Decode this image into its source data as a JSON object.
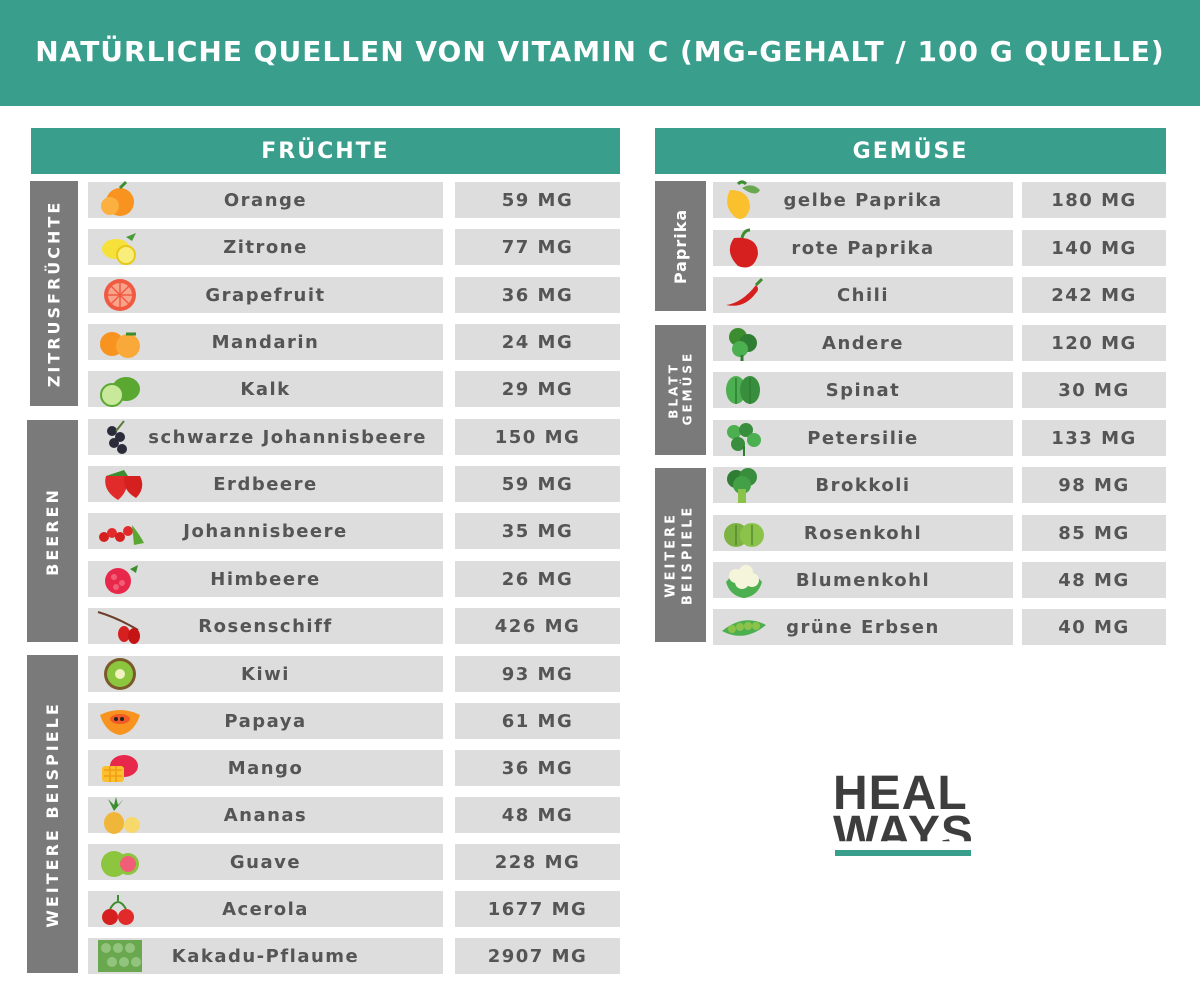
{
  "title": "NATÜRLICHE QUELLEN VON VITAMIN C (MG-GEHALT / 100 G QUELLE)",
  "colors": {
    "accent": "#3a9e8c",
    "group": "#7a7a7a",
    "cell": "#dddddd"
  },
  "fruits": {
    "header": "FRÜCHTE",
    "groups": [
      "ZITRUSFRÜCHTE",
      "BEEREN",
      "WEITERE BEISPIELE"
    ],
    "rows": [
      {
        "name": "Orange",
        "value": "59 MG",
        "icon": "orange-icon"
      },
      {
        "name": "Zitrone",
        "value": "77 MG",
        "icon": "lemon-icon"
      },
      {
        "name": "Grapefruit",
        "value": "36 MG",
        "icon": "grapefruit-icon"
      },
      {
        "name": "Mandarin",
        "value": "24 MG",
        "icon": "mandarin-icon"
      },
      {
        "name": "Kalk",
        "value": "29 MG",
        "icon": "lime-icon"
      },
      {
        "name": "schwarze Johannisbeere",
        "value": "150 MG",
        "icon": "blackcurrant-icon"
      },
      {
        "name": "Erdbeere",
        "value": "59 MG",
        "icon": "strawberry-icon"
      },
      {
        "name": "Johannisbeere",
        "value": "35 MG",
        "icon": "redcurrant-icon"
      },
      {
        "name": "Himbeere",
        "value": "26 MG",
        "icon": "raspberry-icon"
      },
      {
        "name": "Rosenschiff",
        "value": "426 MG",
        "icon": "rosehip-icon"
      },
      {
        "name": "Kiwi",
        "value": "93 MG",
        "icon": "kiwi-icon"
      },
      {
        "name": "Papaya",
        "value": "61 MG",
        "icon": "papaya-icon"
      },
      {
        "name": "Mango",
        "value": "36 MG",
        "icon": "mango-icon"
      },
      {
        "name": "Ananas",
        "value": "48 MG",
        "icon": "pineapple-icon"
      },
      {
        "name": "Guave",
        "value": "228 MG",
        "icon": "guava-icon"
      },
      {
        "name": "Acerola",
        "value": "1677 MG",
        "icon": "acerola-icon"
      },
      {
        "name": "Kakadu-Pflaume",
        "value": "2907 MG",
        "icon": "kakadu-plum-icon"
      }
    ]
  },
  "vegetables": {
    "header": "GEMÜSE",
    "groups": [
      "Paprika",
      "BLATT GEMÜSE",
      "WEITERE BEISPIELE"
    ],
    "rows": [
      {
        "name": "gelbe Paprika",
        "value": "180 MG",
        "icon": "yellow-pepper-icon"
      },
      {
        "name": "rote Paprika",
        "value": "140 MG",
        "icon": "red-pepper-icon"
      },
      {
        "name": "Chili",
        "value": "242 MG",
        "icon": "chili-icon"
      },
      {
        "name": "Andere",
        "value": "120 MG",
        "icon": "kale-icon"
      },
      {
        "name": "Spinat",
        "value": "30 MG",
        "icon": "spinach-icon"
      },
      {
        "name": "Petersilie",
        "value": "133 MG",
        "icon": "parsley-icon"
      },
      {
        "name": "Brokkoli",
        "value": "98 MG",
        "icon": "broccoli-icon"
      },
      {
        "name": "Rosenkohl",
        "value": "85 MG",
        "icon": "brussels-sprouts-icon"
      },
      {
        "name": "Blumenkohl",
        "value": "48 MG",
        "icon": "cauliflower-icon"
      },
      {
        "name": "grüne Erbsen",
        "value": "40 MG",
        "icon": "peas-icon"
      }
    ]
  },
  "logo": {
    "line1": "HEAL",
    "line2": "WAYS"
  }
}
